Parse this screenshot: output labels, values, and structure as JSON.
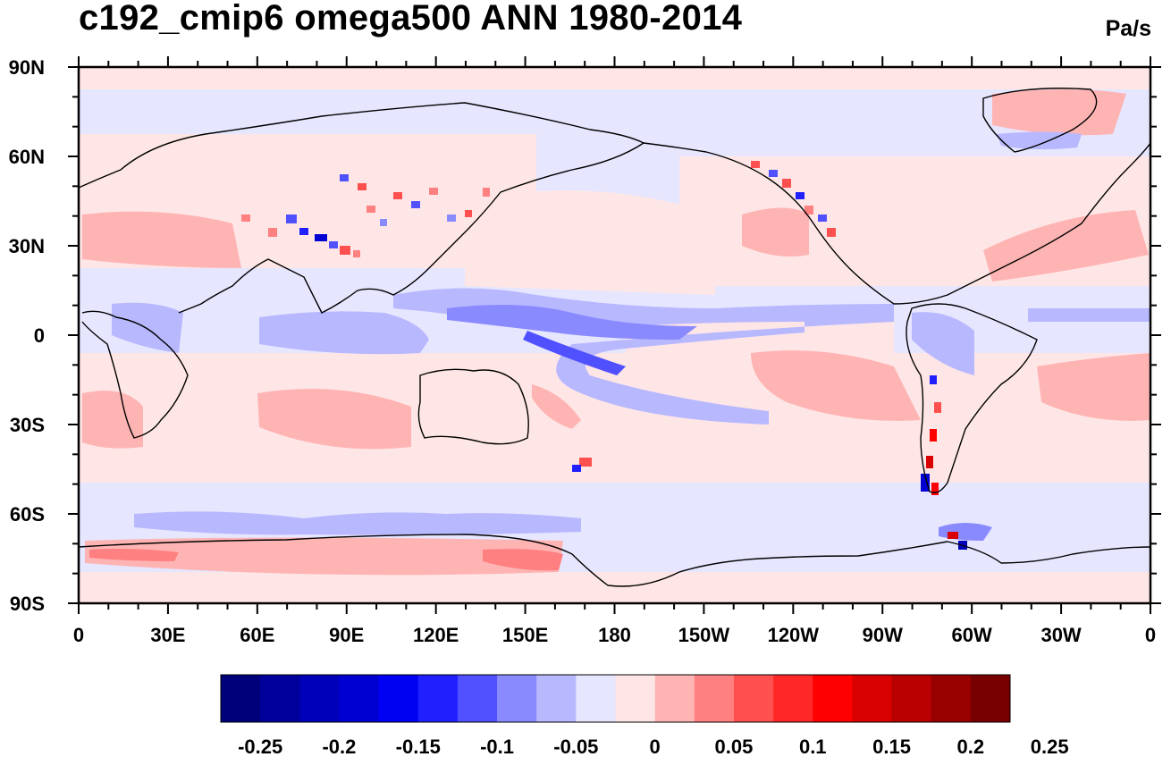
{
  "title": "c192_cmip6 omega500 ANN 1980-2014",
  "units": "Pa/s",
  "map": {
    "projection": "cylindrical equidistant, centered on 180",
    "lon_labels": [
      "0",
      "30E",
      "60E",
      "90E",
      "120E",
      "150E",
      "180",
      "150W",
      "120W",
      "90W",
      "60W",
      "30W",
      "0"
    ],
    "lat_labels": [
      "90N",
      "60N",
      "30N",
      "0",
      "30S",
      "60S",
      "90S"
    ],
    "coastlines": true
  },
  "colorbar": {
    "colors": [
      "#00007a",
      "#00009a",
      "#0000b8",
      "#0000d2",
      "#0000f2",
      "#2020ff",
      "#5050ff",
      "#8a8aff",
      "#b8b8ff",
      "#e6e6ff",
      "#ffe6e6",
      "#ffb4b4",
      "#ff8080",
      "#ff5050",
      "#ff2828",
      "#ff0000",
      "#d80000",
      "#b80000",
      "#980000",
      "#780000"
    ],
    "labels": [
      "-0.25",
      "-0.2",
      "-0.15",
      "-0.1",
      "-0.05",
      "0",
      "0.05",
      "0.1",
      "0.15",
      "0.2",
      "0.25"
    ]
  }
}
